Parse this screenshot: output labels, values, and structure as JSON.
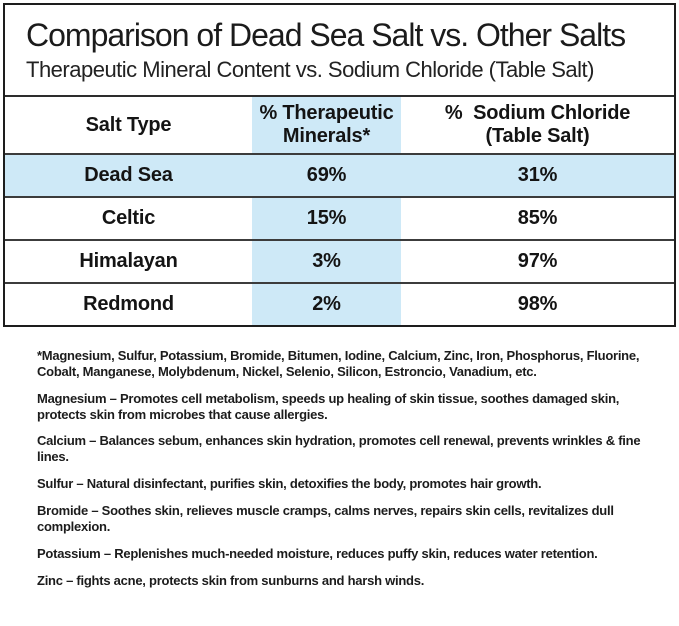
{
  "title": "Comparison of Dead Sea Salt vs. Other Salts",
  "subtitle": "Therapeutic Mineral Content vs. Sodium Chloride (Table Salt)",
  "colors": {
    "highlight_blue": "#cee9f7",
    "outer_border": "#1d1d1d",
    "row_border": "#3c3c3c",
    "text": "#171717"
  },
  "table": {
    "header": {
      "salt_type": "Salt Type",
      "therapeutic_line1": "% Therapeutic",
      "therapeutic_line2": "Minerals*",
      "sodium_line1": "%  Sodium Chloride",
      "sodium_line2": "(Table Salt)"
    },
    "rows": [
      {
        "salt": "Dead Sea",
        "therapeutic": "69%",
        "sodium": "31%",
        "highlighted": true
      },
      {
        "salt": "Celtic",
        "therapeutic": "15%",
        "sodium": "85%",
        "highlighted": false
      },
      {
        "salt": "Himalayan",
        "therapeutic": "3%",
        "sodium": "97%",
        "highlighted": false
      },
      {
        "salt": "Redmond",
        "therapeutic": "2%",
        "sodium": "98%",
        "highlighted": false
      }
    ]
  },
  "footnotes": [
    "*Magnesium, Sulfur, Potassium, Bromide, Bitumen, Iodine, Calcium, Zinc, Iron, Phosphorus, Fluorine, Cobalt, Manganese, Molybdenum, Nickel, Selenio, Silicon, Estroncio, Vanadium, etc.",
    "Magnesium – Promotes cell metabolism, speeds up healing of skin tissue, soothes damaged skin, protects skin from microbes that cause allergies.",
    "Calcium – Balances sebum, enhances skin hydration, promotes cell renewal, prevents wrinkles & fine lines.",
    "Sulfur – Natural disinfectant, purifies skin, detoxifies the body, promotes hair growth.",
    "Bromide – Soothes skin, relieves muscle cramps, calms nerves, repairs skin cells, revitalizes dull complexion.",
    "Potassium – Replenishes much-needed moisture, reduces puffy skin, reduces water retention.",
    "Zinc – fights acne, protects skin from sunburns and harsh winds."
  ],
  "chart_data": {
    "type": "table",
    "title": "Comparison of Dead Sea Salt vs. Other Salts",
    "subtitle": "Therapeutic Mineral Content vs. Sodium Chloride (Table Salt)",
    "categories": [
      "Dead Sea",
      "Celtic",
      "Himalayan",
      "Redmond"
    ],
    "series": [
      {
        "name": "% Therapeutic Minerals*",
        "values": [
          69,
          15,
          3,
          2
        ]
      },
      {
        "name": "% Sodium Chloride (Table Salt)",
        "values": [
          31,
          85,
          97,
          98
        ]
      }
    ],
    "highlighted_row": "Dead Sea",
    "layout": "3-column comparison table, therapeutic-minerals column and Dead Sea row shaded light blue"
  }
}
